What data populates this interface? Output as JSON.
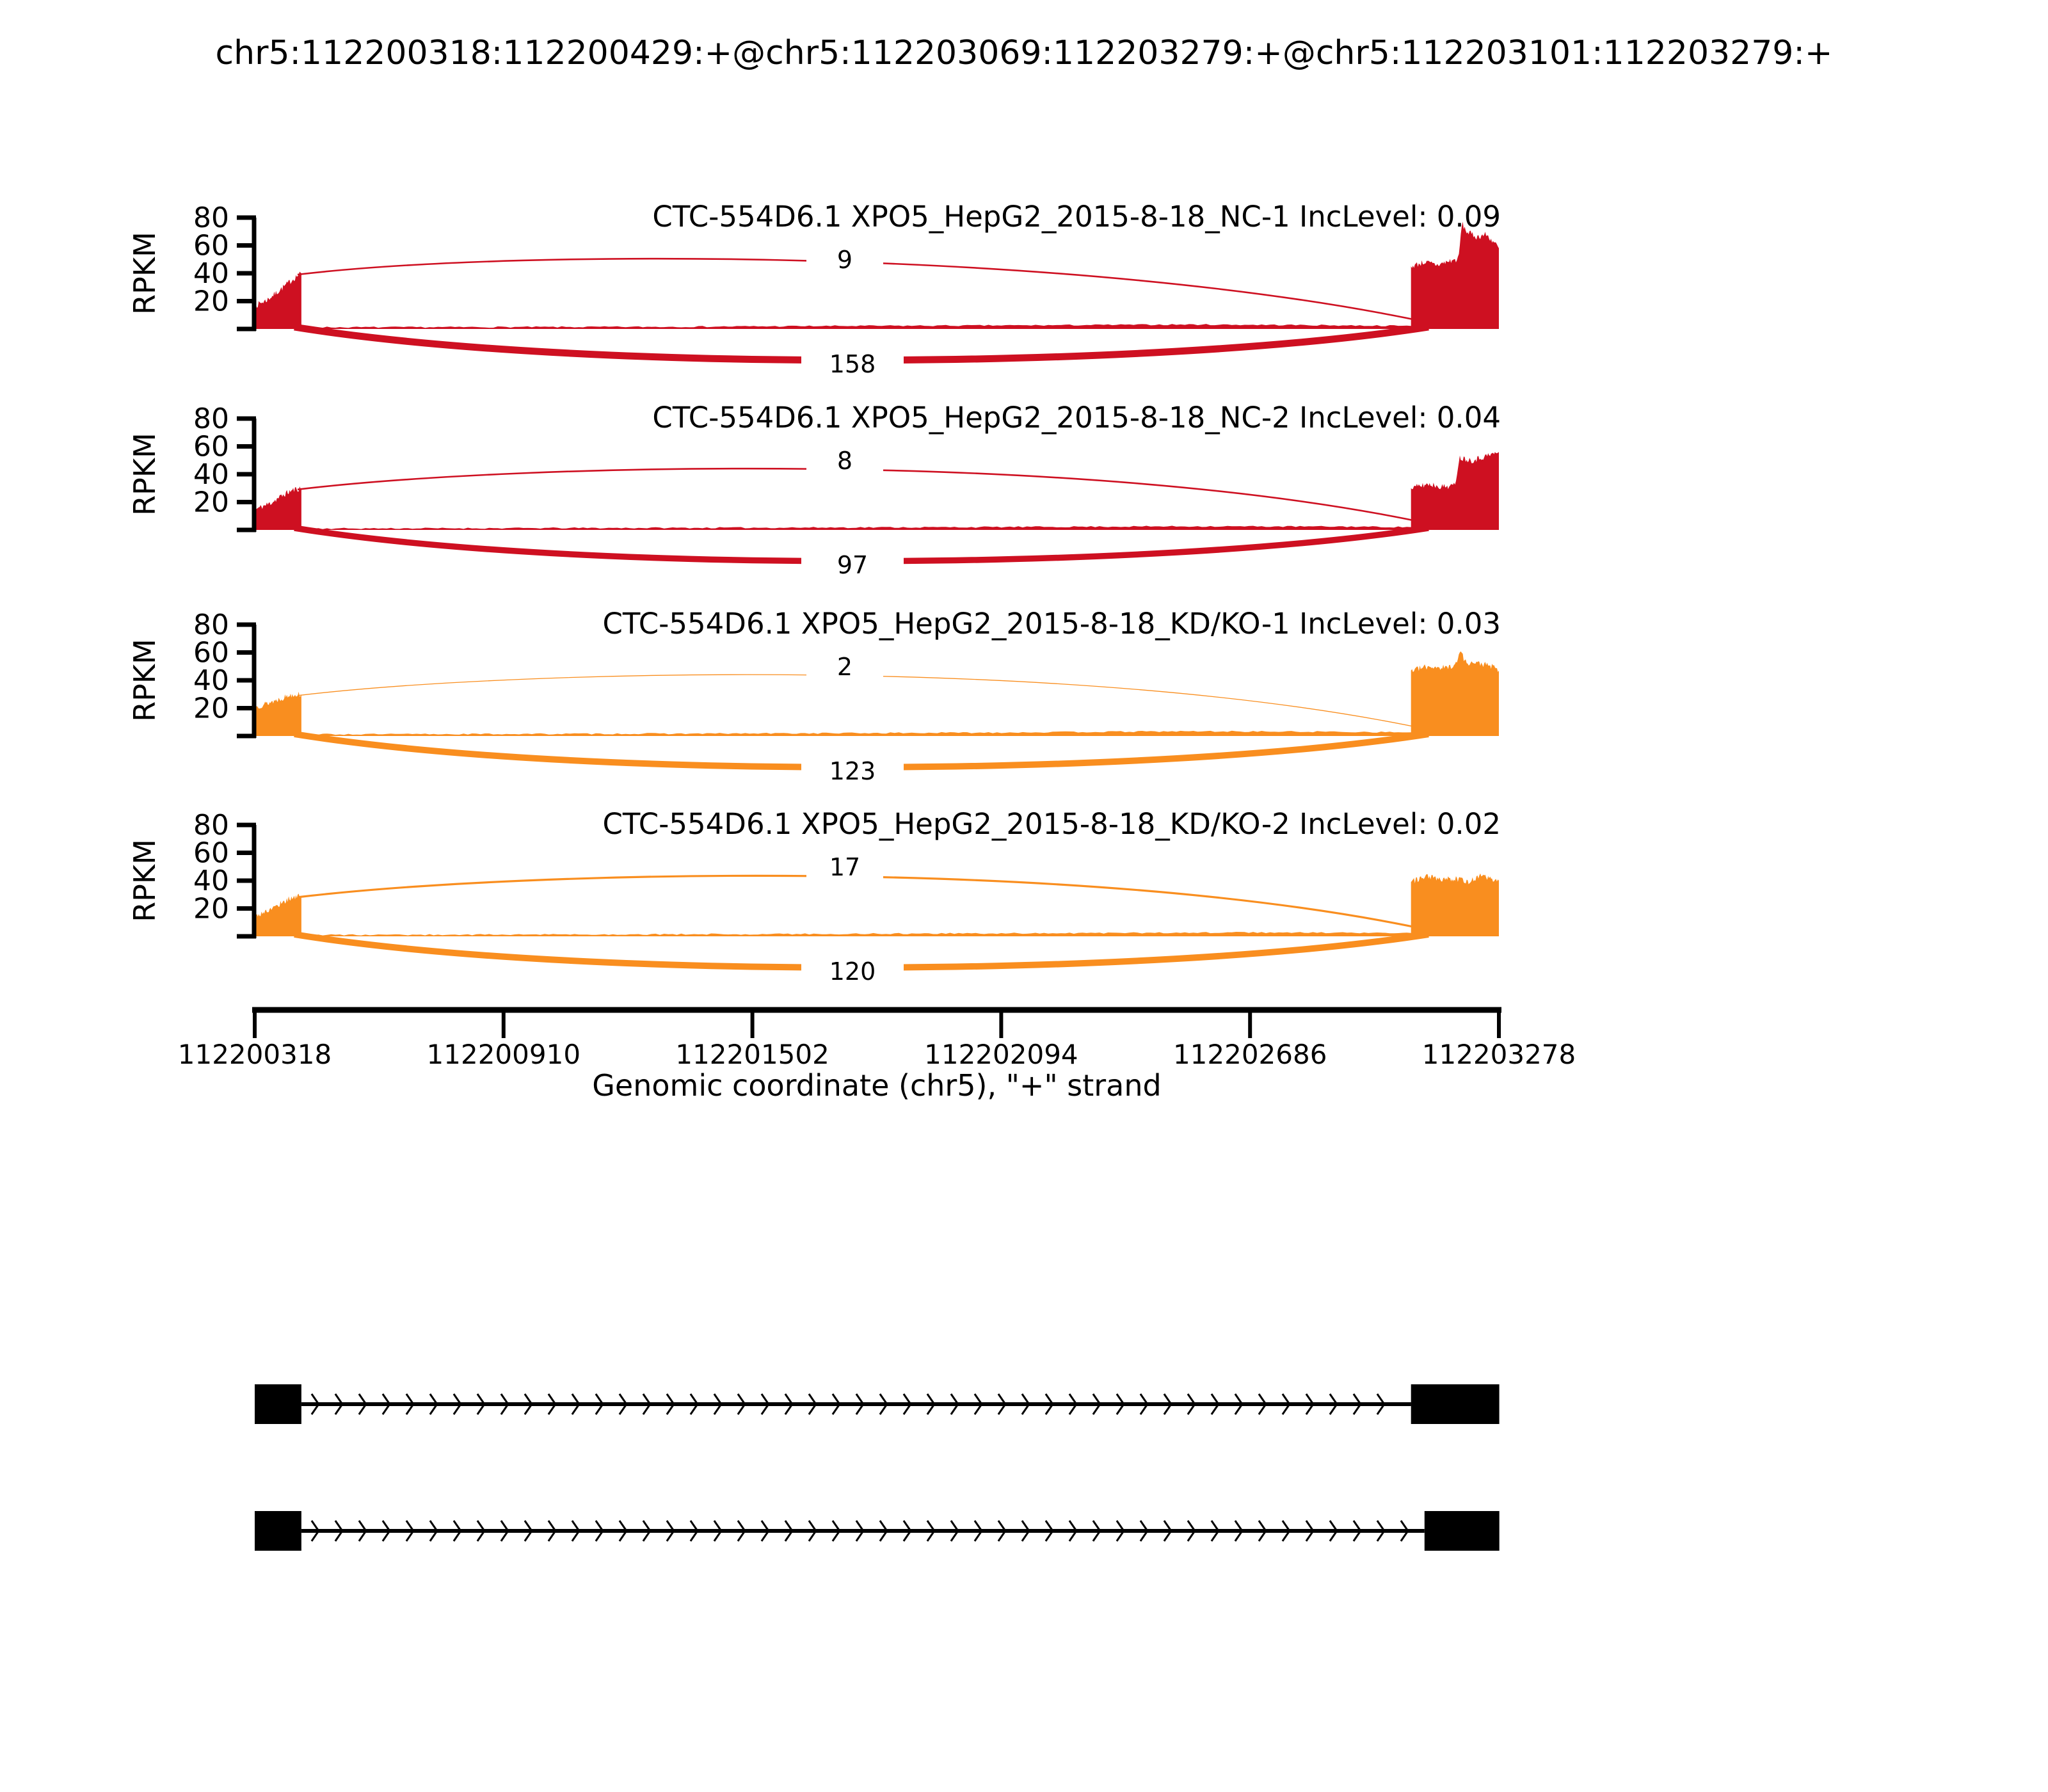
{
  "title": "chr5:112200318:112200429:+@chr5:112203069:112203279:+@chr5:112203101:112203279:+",
  "colors": {
    "nc_group": "#CE1021",
    "kd_group": "#F98E1F",
    "structure": "#000000",
    "label_text": "#000000",
    "background": "#FFFFFF"
  },
  "chart_data": {
    "type": "sashimi",
    "title": "chr5:112200318:112200429:+@chr5:112203069:112203279:+@chr5:112203101:112203279:+",
    "xlabel": "Genomic coordinate (chr5), \"+\" strand",
    "ylabel": "RPKM",
    "strand": "+",
    "xlim": [
      112200318,
      112203278
    ],
    "ylim": [
      0,
      80
    ],
    "yticks": [
      20,
      40,
      60,
      80
    ],
    "xticks": [
      "112200318",
      "112200910",
      "112201502",
      "112202094",
      "112202686",
      "112203278"
    ],
    "grid": false,
    "tracks": [
      {
        "name": "CTC-554D6.1 XPO5_HepG2_2015-8-18_NC-1",
        "inc_level": "0.09",
        "display": "CTC-554D6.1 XPO5_HepG2_2015-8-18_NC-1 IncLevel: 0.09",
        "color": "#CE1021",
        "junction_top": {
          "count": 9,
          "width": 2.6
        },
        "junction_bottom": {
          "count": 158,
          "width": 11
        },
        "left_exon_rpkm": [
          [
            0,
            17
          ],
          [
            0.25,
            21
          ],
          [
            0.45,
            26
          ],
          [
            0.6,
            30
          ],
          [
            0.75,
            34
          ],
          [
            0.9,
            38
          ],
          [
            1,
            40
          ]
        ],
        "intron_rpkm": [
          [
            0,
            1.2
          ],
          [
            0.3,
            1.5
          ],
          [
            0.5,
            2.2
          ],
          [
            0.65,
            2.6
          ],
          [
            0.8,
            3.2
          ],
          [
            0.9,
            2.8
          ],
          [
            1,
            2.2
          ]
        ],
        "right_exon_rpkm": [
          [
            0,
            45
          ],
          [
            0.15,
            48
          ],
          [
            0.3,
            46
          ],
          [
            0.45,
            49
          ],
          [
            0.54,
            50
          ],
          [
            0.58,
            76
          ],
          [
            0.63,
            70
          ],
          [
            0.75,
            66
          ],
          [
            0.85,
            68
          ],
          [
            0.95,
            62
          ],
          [
            1,
            58
          ]
        ]
      },
      {
        "name": "CTC-554D6.1 XPO5_HepG2_2015-8-18_NC-2",
        "inc_level": "0.04",
        "display": "CTC-554D6.1 XPO5_HepG2_2015-8-18_NC-2 IncLevel: 0.04",
        "color": "#CE1021",
        "junction_top": {
          "count": 8,
          "width": 2.6
        },
        "junction_bottom": {
          "count": 97,
          "width": 9.5
        },
        "left_exon_rpkm": [
          [
            0,
            15
          ],
          [
            0.3,
            19
          ],
          [
            0.5,
            23
          ],
          [
            0.7,
            27
          ],
          [
            0.85,
            29
          ],
          [
            1,
            30
          ]
        ],
        "intron_rpkm": [
          [
            0,
            1
          ],
          [
            0.4,
            1.6
          ],
          [
            0.6,
            2
          ],
          [
            0.8,
            2.6
          ],
          [
            0.95,
            2.4
          ],
          [
            1,
            2
          ]
        ],
        "right_exon_rpkm": [
          [
            0,
            30
          ],
          [
            0.2,
            33
          ],
          [
            0.35,
            31
          ],
          [
            0.5,
            32
          ],
          [
            0.55,
            52
          ],
          [
            0.7,
            50
          ],
          [
            0.85,
            53
          ],
          [
            1,
            56
          ]
        ]
      },
      {
        "name": "CTC-554D6.1 XPO5_HepG2_2015-8-18_KD/KO-1",
        "inc_level": "0.03",
        "display": "CTC-554D6.1 XPO5_HepG2_2015-8-18_KD/KO-1 IncLevel: 0.03",
        "color": "#F98E1F",
        "junction_top": {
          "count": 2,
          "width": 1.3
        },
        "junction_bottom": {
          "count": 123,
          "width": 10
        },
        "left_exon_rpkm": [
          [
            0,
            21
          ],
          [
            0.3,
            24
          ],
          [
            0.55,
            27
          ],
          [
            0.8,
            30
          ],
          [
            1,
            30
          ]
        ],
        "intron_rpkm": [
          [
            0,
            1.2
          ],
          [
            0.4,
            1.8
          ],
          [
            0.6,
            2.4
          ],
          [
            0.8,
            3.4
          ],
          [
            0.95,
            3
          ],
          [
            1,
            2.6
          ]
        ],
        "right_exon_rpkm": [
          [
            0,
            47
          ],
          [
            0.2,
            50
          ],
          [
            0.4,
            49
          ],
          [
            0.52,
            52
          ],
          [
            0.56,
            62
          ],
          [
            0.62,
            53
          ],
          [
            0.8,
            52
          ],
          [
            0.92,
            50
          ],
          [
            1,
            47
          ]
        ]
      },
      {
        "name": "CTC-554D6.1 XPO5_HepG2_2015-8-18_KD/KO-2",
        "inc_level": "0.02",
        "display": "CTC-554D6.1 XPO5_HepG2_2015-8-18_KD/KO-2 IncLevel: 0.02",
        "color": "#F98E1F",
        "junction_top": {
          "count": 17,
          "width": 3.2
        },
        "junction_bottom": {
          "count": 120,
          "width": 10
        },
        "left_exon_rpkm": [
          [
            0,
            15
          ],
          [
            0.3,
            19
          ],
          [
            0.55,
            24
          ],
          [
            0.8,
            28
          ],
          [
            1,
            29
          ]
        ],
        "intron_rpkm": [
          [
            0,
            1
          ],
          [
            0.4,
            1.6
          ],
          [
            0.65,
            2.2
          ],
          [
            0.85,
            2.8
          ],
          [
            1,
            2.4
          ]
        ],
        "right_exon_rpkm": [
          [
            0,
            39
          ],
          [
            0.2,
            43
          ],
          [
            0.35,
            40
          ],
          [
            0.5,
            42
          ],
          [
            0.65,
            39
          ],
          [
            0.8,
            44
          ],
          [
            0.9,
            41
          ],
          [
            1,
            40
          ]
        ]
      }
    ],
    "isoforms": [
      {
        "exons": [
          [
            112200318,
            112200429
          ],
          [
            112203069,
            112203279
          ]
        ]
      },
      {
        "exons": [
          [
            112200318,
            112200429
          ],
          [
            112203101,
            112203279
          ]
        ]
      }
    ]
  }
}
